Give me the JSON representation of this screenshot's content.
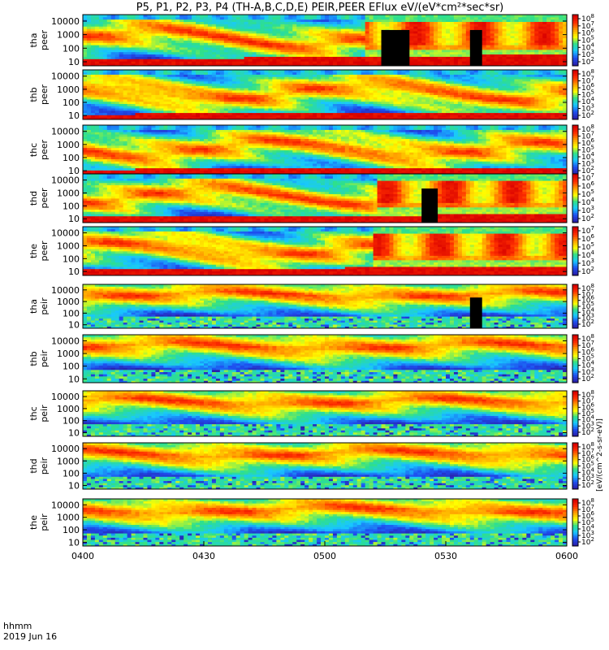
{
  "chart_data": {
    "type": "heatmap",
    "title": "P5, P1, P2, P3, P4 (TH-A,B,C,D,E) PEIR,PEER EFlux eV/(eV*cm²*sec*sr)",
    "date_label": "2019 Jun 16",
    "time_label": "hhmm",
    "x_ticks": [
      "0400",
      "0430",
      "0500",
      "0530",
      "0600"
    ],
    "x_range_minutes": [
      0,
      120
    ],
    "y_axis": "energy (eV), log scale",
    "y_ticks": [
      "10",
      "100",
      "1000",
      "10000"
    ],
    "colorbar_unit_label": "[eV/(cm^2-s-sr-eV)]",
    "colorbar_colors": [
      "#2a1ea8",
      "#1e4ff0",
      "#18c8ff",
      "#2fe08a",
      "#ffff00",
      "#ffa000",
      "#ff3000",
      "#d80000"
    ],
    "panels": [
      {
        "label": "tha peer",
        "species": "electron",
        "colorbar_exponents": [
          "2",
          "3",
          "4",
          "5",
          "6",
          "7",
          "8"
        ],
        "y_range": [
          5,
          30000
        ],
        "transition_min": 70,
        "gaps": [
          {
            "from": 74,
            "to": 81
          },
          {
            "from": 96,
            "to": 99
          }
        ],
        "cutoff_level": 40
      },
      {
        "label": "thb peer",
        "species": "electron",
        "colorbar_exponents": [
          "2",
          "3",
          "4",
          "5",
          "6",
          "7",
          "8"
        ],
        "y_range": [
          5,
          30000
        ],
        "transition_min": 200,
        "gaps": [],
        "cutoff_level": 15
      },
      {
        "label": "thc peer",
        "species": "electron",
        "colorbar_exponents": [
          "2",
          "3",
          "4",
          "5",
          "6",
          "7",
          "8"
        ],
        "y_range": [
          5,
          30000
        ],
        "transition_min": 200,
        "gaps": [],
        "cutoff_level": 15
      },
      {
        "label": "thd peer",
        "species": "electron",
        "colorbar_exponents": [
          "2",
          "3",
          "4",
          "5",
          "6",
          "7"
        ],
        "y_range": [
          5,
          30000
        ],
        "transition_min": 73,
        "gaps": [
          {
            "from": 84,
            "to": 88
          }
        ],
        "cutoff_level": 25
      },
      {
        "label": "the peer",
        "species": "electron",
        "colorbar_exponents": [
          "2",
          "3",
          "4",
          "5",
          "6",
          "7"
        ],
        "y_range": [
          5,
          30000
        ],
        "transition_min": 72,
        "gaps": [],
        "cutoff_level": 30
      },
      {
        "label": "tha peir",
        "species": "ion",
        "colorbar_exponents": [
          "2",
          "3",
          "4",
          "5",
          "6",
          "7",
          "8"
        ],
        "y_range": [
          5,
          30000
        ],
        "transition_min": 200,
        "gaps": [
          {
            "from": 96,
            "to": 99
          }
        ],
        "cutoff_level": 0
      },
      {
        "label": "thb peir",
        "species": "ion",
        "colorbar_exponents": [
          "2",
          "3",
          "4",
          "5",
          "6",
          "7",
          "8"
        ],
        "y_range": [
          5,
          30000
        ],
        "transition_min": 200,
        "gaps": [],
        "cutoff_level": 0
      },
      {
        "label": "thc peir",
        "species": "ion",
        "colorbar_exponents": [
          "2",
          "3",
          "4",
          "5",
          "6",
          "7",
          "8"
        ],
        "y_range": [
          5,
          30000
        ],
        "transition_min": 200,
        "gaps": [],
        "cutoff_level": 0
      },
      {
        "label": "thd peir",
        "species": "ion",
        "colorbar_exponents": [
          "2",
          "3",
          "4",
          "5",
          "6",
          "7",
          "8"
        ],
        "y_range": [
          5,
          30000
        ],
        "transition_min": 200,
        "gaps": [],
        "cutoff_level": 0
      },
      {
        "label": "the peir",
        "species": "ion",
        "colorbar_exponents": [
          "2",
          "3",
          "4",
          "5",
          "6",
          "7",
          "8"
        ],
        "y_range": [
          5,
          30000
        ],
        "transition_min": 200,
        "gaps": [],
        "cutoff_level": 0
      }
    ]
  }
}
